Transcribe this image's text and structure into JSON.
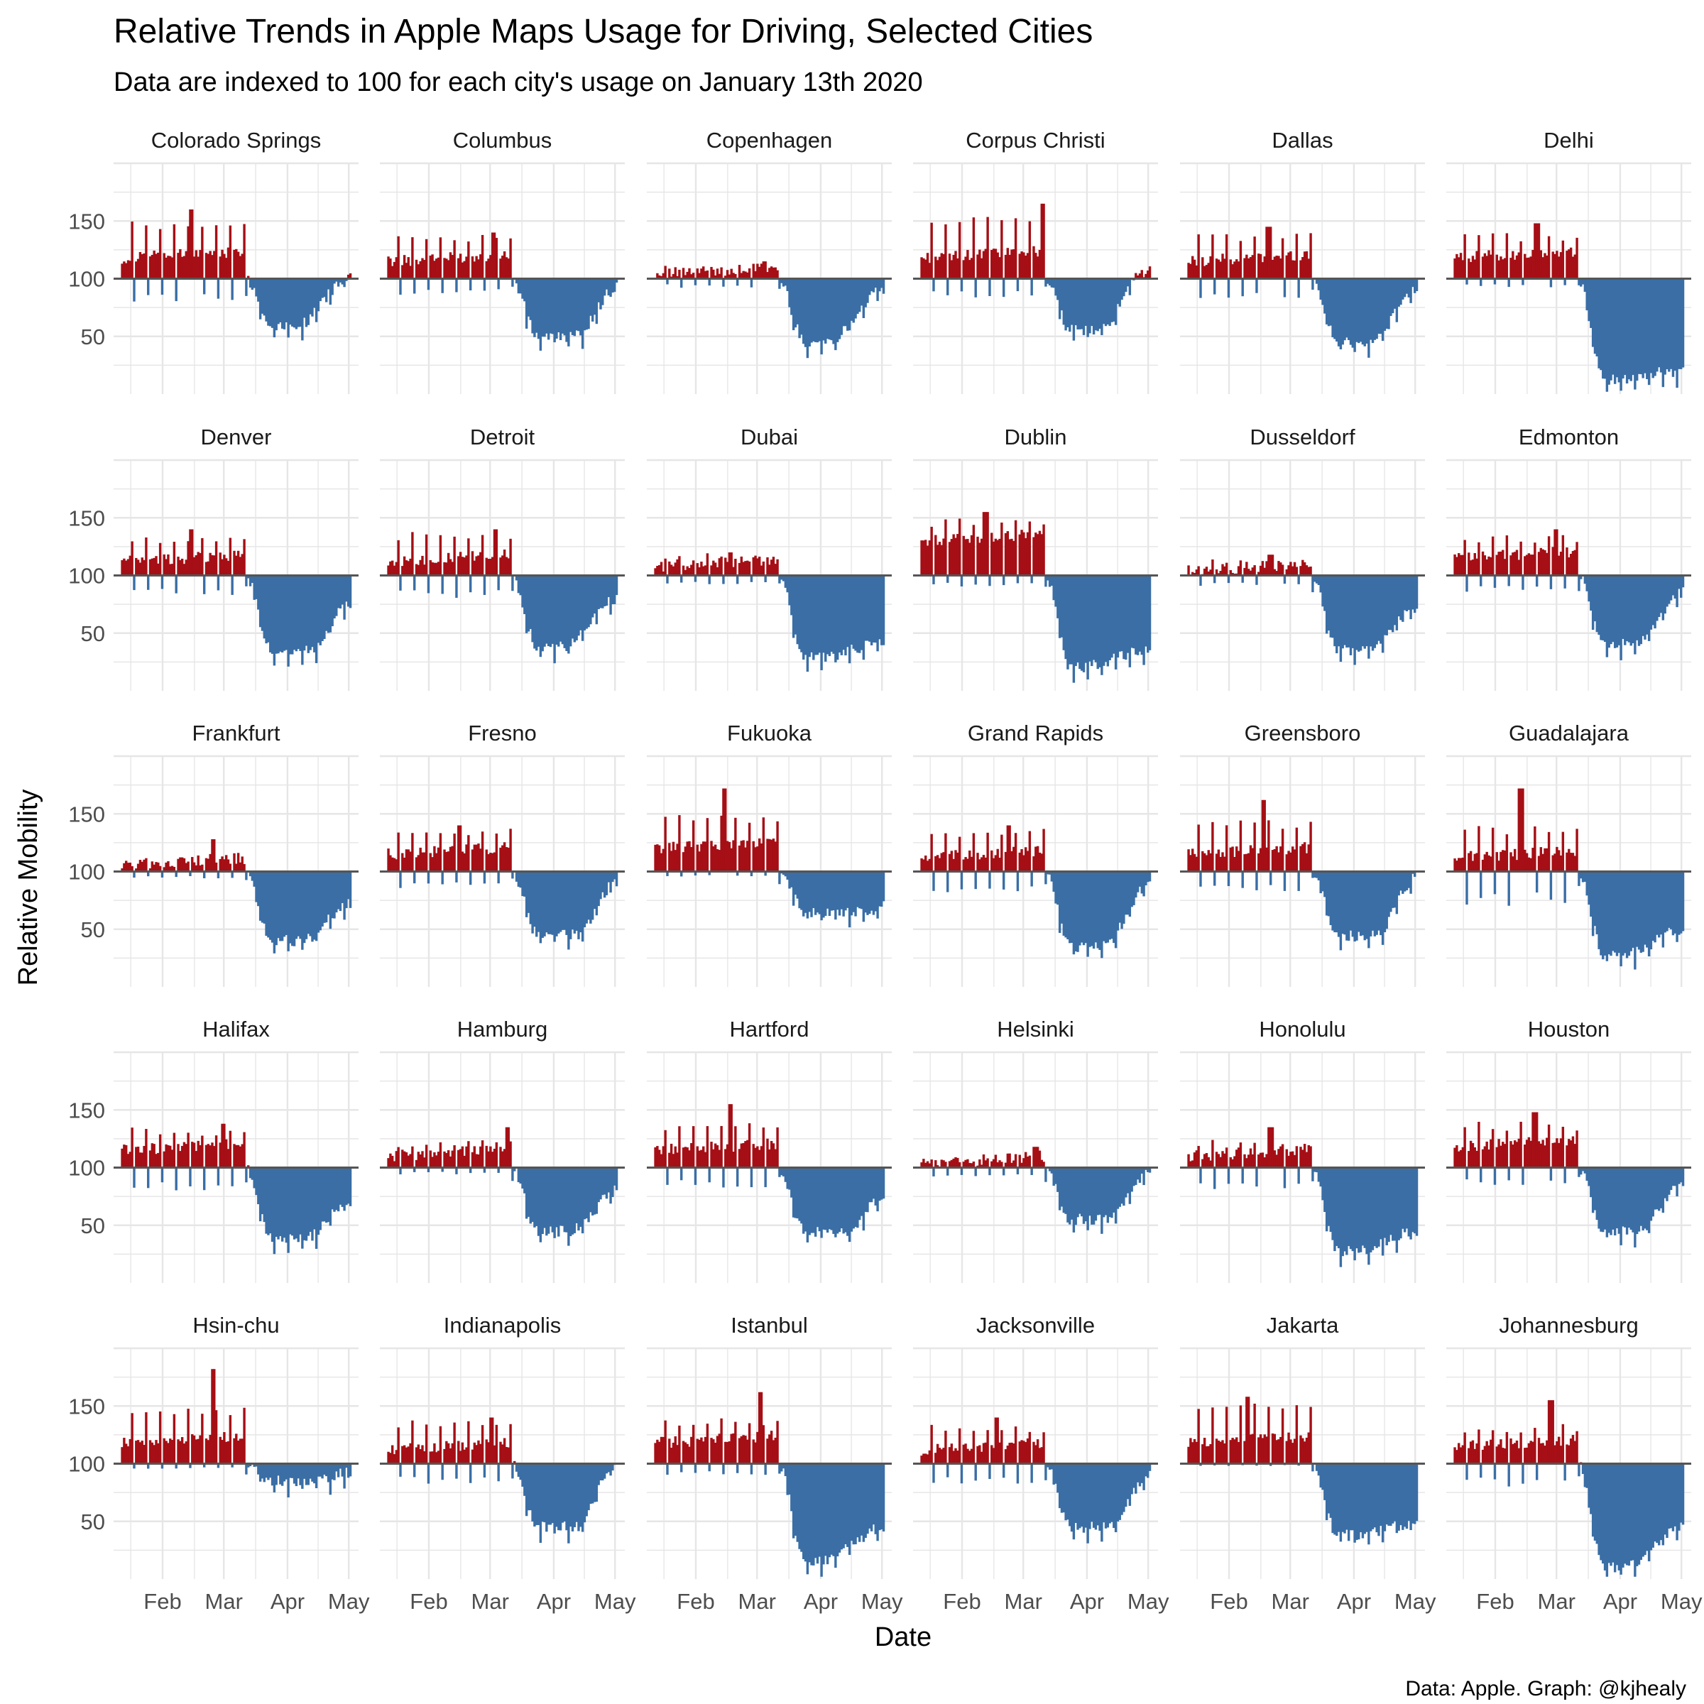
{
  "page": {
    "title": "Relative Trends in Apple Maps Usage for Driving, Selected Cities",
    "subtitle": "Data are indexed to 100 for each city's usage on January 13th 2020",
    "caption": "Data: Apple. Graph: @kjhealy"
  },
  "chart_data": {
    "type": "bar",
    "baseline": 100,
    "xlabel": "Date",
    "ylabel": "Relative Mobility",
    "x_ticks": [
      "Feb",
      "Mar",
      "Apr",
      "May"
    ],
    "y_ticks": [
      50,
      100,
      150
    ],
    "ylim": [
      0,
      200
    ],
    "colors": {
      "above": "#a50f15",
      "below": "#3a6ea5",
      "baseline": "#555555",
      "grid": "#e6e6e6"
    },
    "grid": true,
    "panels": [
      {
        "city": "Colorado Springs",
        "pre": [
          100,
          150
        ],
        "mid": 118,
        "low": 60,
        "dip": 0.35,
        "tail": 102,
        "spike": [
          0.3,
          160
        ],
        "wk": 20
      },
      {
        "city": "Columbus",
        "pre": [
          102,
          138
        ],
        "mid": 115,
        "low": 50,
        "dip": 0.45,
        "tail": 92,
        "spike": [
          0.46,
          140
        ],
        "wk": 15
      },
      {
        "city": "Copenhagen",
        "pre": [
          98,
          112
        ],
        "mid": 104,
        "low": 45,
        "dip": 0.3,
        "tail": 90,
        "spike": [
          0.48,
          115
        ],
        "wk": 8
      },
      {
        "city": "Corpus Christi",
        "pre": [
          102,
          155
        ],
        "mid": 118,
        "low": 55,
        "dip": 0.35,
        "tail": 110,
        "spike": [
          0.53,
          165
        ],
        "wk": 18
      },
      {
        "city": "Dallas",
        "pre": [
          100,
          140
        ],
        "mid": 115,
        "low": 45,
        "dip": 0.4,
        "tail": 90,
        "spike": [
          0.35,
          145
        ],
        "wk": 18
      },
      {
        "city": "Delhi",
        "pre": [
          105,
          140
        ],
        "mid": 118,
        "low": 12,
        "dip": 0.05,
        "tail": 20,
        "spike": [
          0.36,
          148
        ],
        "wk": 8
      },
      {
        "city": "Denver",
        "pre": [
          100,
          135
        ],
        "mid": 112,
        "low": 35,
        "dip": 0.45,
        "tail": 75,
        "spike": [
          0.3,
          140
        ],
        "wk": 18
      },
      {
        "city": "Detroit",
        "pre": [
          100,
          138
        ],
        "mid": 112,
        "low": 38,
        "dip": 0.35,
        "tail": 80,
        "spike": [
          0.47,
          140
        ],
        "wk": 20
      },
      {
        "city": "Dubai",
        "pre": [
          98,
          120
        ],
        "mid": 108,
        "low": 30,
        "dip": 0.3,
        "tail": 42,
        "spike": [
          0.33,
          120
        ],
        "wk": 8
      },
      {
        "city": "Dublin",
        "pre": [
          110,
          150
        ],
        "mid": 130,
        "low": 20,
        "dip": 0.15,
        "tail": 35,
        "spike": [
          0.28,
          155
        ],
        "wk": 10
      },
      {
        "city": "Dusseldorf",
        "pre": [
          100,
          115
        ],
        "mid": 104,
        "low": 35,
        "dip": 0.35,
        "tail": 70,
        "spike": [
          0.36,
          118
        ],
        "wk": 10
      },
      {
        "city": "Edmonton",
        "pre": [
          100,
          135
        ],
        "mid": 115,
        "low": 40,
        "dip": 0.4,
        "tail": 85,
        "spike": [
          0.44,
          140
        ],
        "wk": 15
      },
      {
        "city": "Frankfurt",
        "pre": [
          100,
          112
        ],
        "mid": 106,
        "low": 40,
        "dip": 0.4,
        "tail": 72,
        "spike": [
          0.4,
          128
        ],
        "wk": 6
      },
      {
        "city": "Fresno",
        "pre": [
          100,
          138
        ],
        "mid": 115,
        "low": 45,
        "dip": 0.45,
        "tail": 90,
        "spike": [
          0.31,
          140
        ],
        "wk": 15
      },
      {
        "city": "Fukuoka",
        "pre": [
          100,
          150
        ],
        "mid": 120,
        "low": 65,
        "dip": 0.7,
        "tail": 72,
        "spike": [
          0.3,
          172
        ],
        "wk": 5
      },
      {
        "city": "Grand Rapids",
        "pre": [
          100,
          138
        ],
        "mid": 112,
        "low": 35,
        "dip": 0.4,
        "tail": 90,
        "spike": [
          0.38,
          140
        ],
        "wk": 18
      },
      {
        "city": "Greensboro",
        "pre": [
          100,
          145
        ],
        "mid": 115,
        "low": 45,
        "dip": 0.45,
        "tail": 95,
        "spike": [
          0.33,
          162
        ],
        "wk": 18
      },
      {
        "city": "Guadalajara",
        "pre": [
          100,
          140
        ],
        "mid": 112,
        "low": 28,
        "dip": 0.3,
        "tail": 50,
        "spike": [
          0.29,
          172
        ],
        "wk": 30
      },
      {
        "city": "Halifax",
        "pre": [
          100,
          135
        ],
        "mid": 115,
        "low": 38,
        "dip": 0.4,
        "tail": 70,
        "spike": [
          0.44,
          138
        ],
        "wk": 20
      },
      {
        "city": "Hamburg",
        "pre": [
          100,
          125
        ],
        "mid": 110,
        "low": 45,
        "dip": 0.4,
        "tail": 80,
        "spike": [
          0.52,
          135
        ],
        "wk": 6
      },
      {
        "city": "Hartford",
        "pre": [
          100,
          140
        ],
        "mid": 115,
        "low": 45,
        "dip": 0.5,
        "tail": 75,
        "spike": [
          0.33,
          155
        ],
        "wk": 18
      },
      {
        "city": "Helsinki",
        "pre": [
          96,
          112
        ],
        "mid": 104,
        "low": 55,
        "dip": 0.45,
        "tail": 95,
        "spike": [
          0.5,
          118
        ],
        "wk": 8
      },
      {
        "city": "Honolulu",
        "pre": [
          100,
          125
        ],
        "mid": 110,
        "low": 28,
        "dip": 0.3,
        "tail": 45,
        "spike": [
          0.36,
          135
        ],
        "wk": 20
      },
      {
        "city": "Houston",
        "pre": [
          102,
          140
        ],
        "mid": 118,
        "low": 45,
        "dip": 0.4,
        "tail": 85,
        "spike": [
          0.35,
          148
        ],
        "wk": 15
      },
      {
        "city": "Hsin-chu",
        "pre": [
          100,
          150
        ],
        "mid": 118,
        "low": 85,
        "dip": 0.5,
        "tail": 92,
        "spike": [
          0.4,
          182
        ],
        "wk": 5
      },
      {
        "city": "Indianapolis",
        "pre": [
          100,
          138
        ],
        "mid": 112,
        "low": 45,
        "dip": 0.45,
        "tail": 100,
        "spike": [
          0.45,
          140
        ],
        "wk": 18
      },
      {
        "city": "Istanbul",
        "pre": [
          102,
          140
        ],
        "mid": 118,
        "low": 15,
        "dip": 0.25,
        "tail": 45,
        "spike": [
          0.46,
          162
        ],
        "wk": 10
      },
      {
        "city": "Jacksonville",
        "pre": [
          100,
          135
        ],
        "mid": 112,
        "low": 45,
        "dip": 0.45,
        "tail": 90,
        "spike": [
          0.33,
          140
        ],
        "wk": 18
      },
      {
        "city": "Jakarta",
        "pre": [
          100,
          155
        ],
        "mid": 118,
        "low": 38,
        "dip": 0.2,
        "tail": 48,
        "spike": [
          0.26,
          158
        ],
        "wk": 2
      },
      {
        "city": "Johannesburg",
        "pre": [
          100,
          135
        ],
        "mid": 115,
        "low": 10,
        "dip": 0.3,
        "tail": 45,
        "spike": [
          0.42,
          155
        ],
        "wk": 20
      }
    ]
  }
}
